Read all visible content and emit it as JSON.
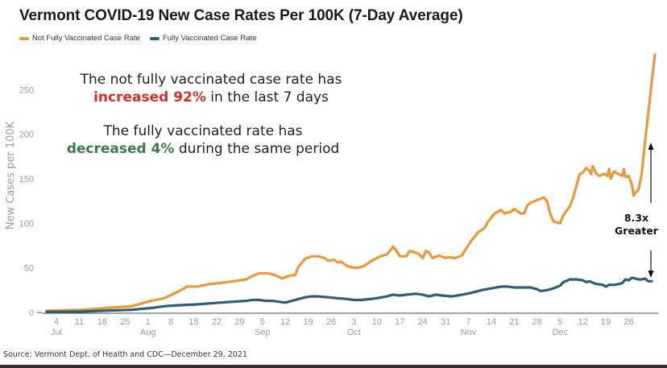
{
  "chart_data": {
    "type": "line",
    "title": "Vermont COVID-19 New Case Rates Per 100K (7-Day Average)",
    "xlabel": "",
    "ylabel": "New Cases per 100K",
    "ylim": [
      0,
      290
    ],
    "yticks": [
      0,
      50,
      100,
      150,
      200,
      250
    ],
    "grid": false,
    "legend_position": "top-left",
    "x_start_date": "2021-07-01",
    "x_end_date": "2021-12-28",
    "xticks": [
      {
        "label": "4",
        "month": "Jul",
        "day_offset": 3
      },
      {
        "label": "11",
        "month": "",
        "day_offset": 10
      },
      {
        "label": "18",
        "month": "",
        "day_offset": 17
      },
      {
        "label": "25",
        "month": "",
        "day_offset": 24
      },
      {
        "label": "1",
        "month": "Aug",
        "day_offset": 31
      },
      {
        "label": "8",
        "month": "",
        "day_offset": 38
      },
      {
        "label": "15",
        "month": "",
        "day_offset": 45
      },
      {
        "label": "22",
        "month": "",
        "day_offset": 52
      },
      {
        "label": "29",
        "month": "",
        "day_offset": 59
      },
      {
        "label": "5",
        "month": "Sep",
        "day_offset": 66
      },
      {
        "label": "12",
        "month": "",
        "day_offset": 73
      },
      {
        "label": "19",
        "month": "",
        "day_offset": 80
      },
      {
        "label": "26",
        "month": "",
        "day_offset": 87
      },
      {
        "label": "3",
        "month": "Oct",
        "day_offset": 94
      },
      {
        "label": "10",
        "month": "",
        "day_offset": 101
      },
      {
        "label": "17",
        "month": "",
        "day_offset": 108
      },
      {
        "label": "24",
        "month": "",
        "day_offset": 115
      },
      {
        "label": "31",
        "month": "",
        "day_offset": 122
      },
      {
        "label": "7",
        "month": "Nov",
        "day_offset": 129
      },
      {
        "label": "14",
        "month": "",
        "day_offset": 136
      },
      {
        "label": "21",
        "month": "",
        "day_offset": 143
      },
      {
        "label": "28",
        "month": "",
        "day_offset": 150
      },
      {
        "label": "5",
        "month": "Dec",
        "day_offset": 157
      },
      {
        "label": "12",
        "month": "",
        "day_offset": 164
      },
      {
        "label": "19",
        "month": "",
        "day_offset": 171
      },
      {
        "label": "26",
        "month": "",
        "day_offset": 178
      }
    ],
    "series": [
      {
        "name": "Not Fully Vaccinated Case Rate",
        "color": "#E8993A",
        "points": [
          [
            0,
            2
          ],
          [
            11,
            3
          ],
          [
            18,
            5
          ],
          [
            26,
            7
          ],
          [
            32,
            13
          ],
          [
            36,
            16
          ],
          [
            40,
            23
          ],
          [
            43,
            29
          ],
          [
            46,
            29
          ],
          [
            50,
            32
          ],
          [
            53,
            33
          ],
          [
            57,
            35
          ],
          [
            61,
            37
          ],
          [
            63,
            41
          ],
          [
            65,
            44
          ],
          [
            67,
            44
          ],
          [
            69,
            43
          ],
          [
            71,
            40
          ],
          [
            72,
            38
          ],
          [
            74,
            41
          ],
          [
            76,
            42
          ],
          [
            77,
            51
          ],
          [
            79,
            60
          ],
          [
            81,
            63
          ],
          [
            83,
            63
          ],
          [
            85,
            61
          ],
          [
            86,
            58
          ],
          [
            88,
            59
          ],
          [
            89,
            56
          ],
          [
            90,
            57
          ],
          [
            92,
            52
          ],
          [
            94,
            50
          ],
          [
            95,
            50
          ],
          [
            97,
            52
          ],
          [
            99,
            57
          ],
          [
            101,
            61
          ],
          [
            102,
            63
          ],
          [
            104,
            65
          ],
          [
            105,
            69
          ],
          [
            106,
            74
          ],
          [
            107,
            69
          ],
          [
            108,
            63
          ],
          [
            110,
            63
          ],
          [
            111,
            69
          ],
          [
            113,
            67
          ],
          [
            114,
            65
          ],
          [
            115,
            61
          ],
          [
            116,
            69
          ],
          [
            117,
            67
          ],
          [
            118,
            61
          ],
          [
            120,
            64
          ],
          [
            122,
            61
          ],
          [
            123,
            62
          ],
          [
            125,
            61
          ],
          [
            127,
            64
          ],
          [
            128,
            70
          ],
          [
            130,
            81
          ],
          [
            132,
            90
          ],
          [
            134,
            95
          ],
          [
            135,
            102
          ],
          [
            137,
            111
          ],
          [
            139,
            115
          ],
          [
            140,
            111
          ],
          [
            142,
            113
          ],
          [
            143,
            116
          ],
          [
            145,
            111
          ],
          [
            146,
            111
          ],
          [
            147,
            120
          ],
          [
            148,
            123
          ],
          [
            150,
            126
          ],
          [
            152,
            129
          ],
          [
            153,
            125
          ],
          [
            154,
            111
          ],
          [
            155,
            102
          ],
          [
            156,
            101
          ],
          [
            157,
            100
          ],
          [
            158,
            109
          ],
          [
            159,
            114
          ],
          [
            160,
            119
          ],
          [
            161,
            129
          ],
          [
            163,
            155
          ],
          [
            164,
            157
          ],
          [
            165,
            162
          ],
          [
            166,
            159
          ],
          [
            166.5,
            155
          ],
          [
            167,
            164
          ],
          [
            168,
            156
          ],
          [
            169,
            153
          ],
          [
            170,
            155
          ],
          [
            171,
            155
          ],
          [
            171.5,
            153
          ],
          [
            172,
            161
          ],
          [
            172.5,
            150
          ],
          [
            173.5,
            158
          ],
          [
            175,
            155
          ],
          [
            176,
            153
          ],
          [
            176.5,
            161
          ],
          [
            177,
            152
          ],
          [
            178,
            153
          ],
          [
            179,
            143
          ],
          [
            179.5,
            131
          ],
          [
            180,
            134
          ],
          [
            181,
            138
          ],
          [
            182,
            156
          ],
          [
            183,
            192
          ],
          [
            184.5,
            241
          ],
          [
            186,
            289
          ]
        ]
      },
      {
        "name": "Fully Vaccinated Case Rate",
        "color": "#2E5E78",
        "points": [
          [
            0,
            0.5
          ],
          [
            11,
            1
          ],
          [
            18,
            2
          ],
          [
            26,
            3
          ],
          [
            32,
            5
          ],
          [
            36,
            7
          ],
          [
            40,
            8
          ],
          [
            46,
            9
          ],
          [
            53,
            11
          ],
          [
            57,
            12
          ],
          [
            61,
            13
          ],
          [
            63,
            14
          ],
          [
            65,
            14
          ],
          [
            67,
            13
          ],
          [
            69,
            13
          ],
          [
            71,
            12
          ],
          [
            73,
            11
          ],
          [
            75,
            13
          ],
          [
            77,
            15
          ],
          [
            79,
            17
          ],
          [
            81,
            18
          ],
          [
            83,
            18
          ],
          [
            86,
            17
          ],
          [
            89,
            16
          ],
          [
            92,
            15
          ],
          [
            94,
            14
          ],
          [
            96,
            14
          ],
          [
            99,
            15
          ],
          [
            101,
            16
          ],
          [
            104,
            18
          ],
          [
            106,
            20
          ],
          [
            108,
            19
          ],
          [
            110,
            20
          ],
          [
            113,
            21
          ],
          [
            115,
            20
          ],
          [
            117,
            18
          ],
          [
            119,
            20
          ],
          [
            121,
            19
          ],
          [
            124,
            18
          ],
          [
            127,
            20
          ],
          [
            130,
            22
          ],
          [
            133,
            25
          ],
          [
            136,
            27
          ],
          [
            139,
            29
          ],
          [
            141,
            29
          ],
          [
            143,
            28
          ],
          [
            145,
            28
          ],
          [
            148,
            28
          ],
          [
            150,
            26
          ],
          [
            151,
            24
          ],
          [
            153,
            25
          ],
          [
            155,
            27
          ],
          [
            157,
            30
          ],
          [
            158,
            34
          ],
          [
            160,
            37
          ],
          [
            162,
            37
          ],
          [
            164,
            36
          ],
          [
            165,
            34
          ],
          [
            166,
            35
          ],
          [
            168,
            32
          ],
          [
            170,
            31
          ],
          [
            171,
            29
          ],
          [
            172,
            31
          ],
          [
            174,
            31
          ],
          [
            176,
            33
          ],
          [
            177,
            37
          ],
          [
            178,
            36
          ],
          [
            179,
            39
          ],
          [
            180,
            38
          ],
          [
            181,
            37
          ],
          [
            182,
            37
          ],
          [
            183,
            38
          ],
          [
            184,
            35
          ],
          [
            185,
            35
          ]
        ]
      }
    ],
    "annotations": {
      "line1_pre": "The not fully vaccinated case rate has",
      "line1_hl": "increased 92%",
      "line1_post": " in the last 7 days",
      "line2_pre": "The fully vaccinated rate has",
      "line2_hl": "decreased 4%",
      "line2_post": " during the same period",
      "hl_red": "#D0312D",
      "hl_green": "#3A7D44",
      "ratio_value": "8.3x",
      "ratio_label": "Greater"
    }
  },
  "source": "Source: Vermont Dept. of Health and CDC—December 29, 2021"
}
